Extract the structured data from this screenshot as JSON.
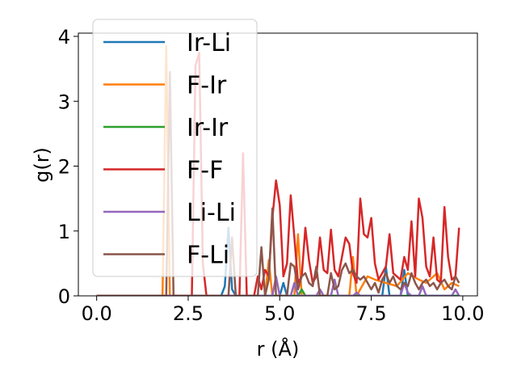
{
  "chart_data": {
    "type": "line",
    "xlabel": "r (Å)",
    "ylabel": "g(r)",
    "xlim": [
      -0.5,
      10.4
    ],
    "ylim": [
      0,
      4.05
    ],
    "xticks": [
      0.0,
      2.5,
      5.0,
      7.5,
      10.0
    ],
    "xtick_labels": [
      "0.0",
      "2.5",
      "5.0",
      "7.5",
      "10.0"
    ],
    "yticks": [
      0,
      1,
      2,
      3,
      4
    ],
    "ytick_labels": [
      "0",
      "1",
      "2",
      "3",
      "4"
    ],
    "grid": false,
    "legend_position": "upper-left",
    "series": [
      {
        "name": "Ir-Li",
        "color": "#1f77b4",
        "points": [
          [
            0,
            0
          ],
          [
            3.4,
            0
          ],
          [
            3.5,
            0.15
          ],
          [
            3.6,
            1.05
          ],
          [
            3.7,
            0.1
          ],
          [
            3.8,
            0
          ],
          [
            5.0,
            0
          ],
          [
            5.1,
            0.2
          ],
          [
            5.2,
            0
          ],
          [
            7.8,
            0
          ],
          [
            7.9,
            0.45
          ],
          [
            8.0,
            0
          ],
          [
            8.3,
            0
          ],
          [
            8.4,
            0.4
          ],
          [
            8.5,
            0
          ],
          [
            9.9,
            0
          ]
        ]
      },
      {
        "name": "F-Ir",
        "color": "#ff7f0e",
        "points": [
          [
            0,
            0
          ],
          [
            1.8,
            0
          ],
          [
            1.9,
            3.85
          ],
          [
            2.0,
            0
          ],
          [
            4.6,
            0
          ],
          [
            4.7,
            0.55
          ],
          [
            4.8,
            0
          ],
          [
            5.4,
            0
          ],
          [
            5.5,
            0.95
          ],
          [
            5.6,
            0
          ],
          [
            6.9,
            0
          ],
          [
            7.0,
            0.6
          ],
          [
            7.1,
            0
          ],
          [
            7.4,
            0.3
          ],
          [
            7.6,
            0.25
          ],
          [
            7.9,
            0.2
          ],
          [
            8.2,
            0.15
          ],
          [
            8.5,
            0.35
          ],
          [
            8.8,
            0.25
          ],
          [
            9.0,
            0.2
          ],
          [
            9.3,
            0.35
          ],
          [
            9.5,
            0.1
          ],
          [
            9.7,
            0.2
          ],
          [
            9.9,
            0.15
          ]
        ]
      },
      {
        "name": "Ir-Ir",
        "color": "#2ca02c",
        "points": [
          [
            0,
            0
          ],
          [
            5.5,
            0
          ],
          [
            5.6,
            0.1
          ],
          [
            5.7,
            0
          ],
          [
            9.9,
            0
          ]
        ]
      },
      {
        "name": "F-F",
        "color": "#d62728",
        "points": [
          [
            0,
            0
          ],
          [
            2.6,
            0
          ],
          [
            2.7,
            3.55
          ],
          [
            2.8,
            3.75
          ],
          [
            2.9,
            0.5
          ],
          [
            3.0,
            0
          ],
          [
            3.9,
            0
          ],
          [
            4.0,
            2.2
          ],
          [
            4.1,
            0
          ],
          [
            4.3,
            0
          ],
          [
            4.4,
            0.3
          ],
          [
            4.5,
            0.1
          ],
          [
            4.6,
            0.4
          ],
          [
            4.7,
            0.3
          ],
          [
            4.8,
            1.2
          ],
          [
            4.9,
            1.78
          ],
          [
            5.0,
            1.4
          ],
          [
            5.1,
            0.3
          ],
          [
            5.2,
            0.5
          ],
          [
            5.3,
            1.55
          ],
          [
            5.4,
            0.9
          ],
          [
            5.5,
            0.2
          ],
          [
            5.6,
            0.3
          ],
          [
            5.7,
            1.05
          ],
          [
            5.8,
            0.55
          ],
          [
            5.9,
            0.2
          ],
          [
            6.0,
            0.3
          ],
          [
            6.1,
            0.9
          ],
          [
            6.2,
            0.4
          ],
          [
            6.3,
            0.35
          ],
          [
            6.4,
            1.02
          ],
          [
            6.5,
            0.4
          ],
          [
            6.6,
            0.3
          ],
          [
            6.7,
            0.6
          ],
          [
            6.8,
            0.9
          ],
          [
            6.9,
            0.8
          ],
          [
            7.0,
            0.35
          ],
          [
            7.1,
            0.2
          ],
          [
            7.2,
            1.5
          ],
          [
            7.3,
            0.95
          ],
          [
            7.4,
            0.9
          ],
          [
            7.5,
            1.2
          ],
          [
            7.6,
            0.5
          ],
          [
            7.7,
            0.25
          ],
          [
            7.8,
            0.35
          ],
          [
            7.9,
            0.45
          ],
          [
            8.0,
            0.95
          ],
          [
            8.1,
            0.35
          ],
          [
            8.2,
            0.3
          ],
          [
            8.3,
            0.25
          ],
          [
            8.4,
            0.6
          ],
          [
            8.5,
            0.4
          ],
          [
            8.6,
            1.15
          ],
          [
            8.7,
            0.3
          ],
          [
            8.8,
            1.5
          ],
          [
            8.9,
            1.2
          ],
          [
            9.0,
            0.45
          ],
          [
            9.1,
            0.3
          ],
          [
            9.2,
            0.9
          ],
          [
            9.3,
            0.25
          ],
          [
            9.4,
            0.2
          ],
          [
            9.5,
            1.37
          ],
          [
            9.6,
            0.6
          ],
          [
            9.7,
            0.25
          ],
          [
            9.8,
            0.3
          ],
          [
            9.9,
            1.05
          ]
        ]
      },
      {
        "name": "Li-Li",
        "color": "#9467bd",
        "points": [
          [
            0,
            0
          ],
          [
            4.8,
            0
          ],
          [
            4.9,
            0.3
          ],
          [
            5.0,
            0
          ],
          [
            5.3,
            0
          ],
          [
            5.4,
            0.2
          ],
          [
            5.5,
            0
          ],
          [
            6.0,
            0
          ],
          [
            6.1,
            0.1
          ],
          [
            6.2,
            0
          ],
          [
            6.4,
            0
          ],
          [
            6.5,
            0.25
          ],
          [
            6.6,
            0
          ],
          [
            7.0,
            0
          ],
          [
            7.1,
            0.05
          ],
          [
            7.2,
            0
          ],
          [
            8.3,
            0
          ],
          [
            8.4,
            0.2
          ],
          [
            8.5,
            0.05
          ],
          [
            8.6,
            0
          ],
          [
            8.8,
            0
          ],
          [
            8.9,
            0.15
          ],
          [
            9.0,
            0
          ],
          [
            9.7,
            0
          ],
          [
            9.8,
            0.1
          ],
          [
            9.9,
            0
          ]
        ]
      },
      {
        "name": "F-Li",
        "color": "#8c564b",
        "points": [
          [
            0,
            0
          ],
          [
            1.9,
            0
          ],
          [
            2.0,
            3.45
          ],
          [
            2.1,
            0
          ],
          [
            3.6,
            0
          ],
          [
            3.7,
            0.9
          ],
          [
            3.8,
            0
          ],
          [
            4.4,
            0
          ],
          [
            4.5,
            0.75
          ],
          [
            4.6,
            0
          ],
          [
            4.7,
            0.25
          ],
          [
            4.8,
            1.35
          ],
          [
            4.9,
            0
          ],
          [
            5.2,
            0
          ],
          [
            5.3,
            0.5
          ],
          [
            5.4,
            0.45
          ],
          [
            5.5,
            0.1
          ],
          [
            5.6,
            0.3
          ],
          [
            5.7,
            0.35
          ],
          [
            5.8,
            0.2
          ],
          [
            5.9,
            0.15
          ],
          [
            6.0,
            0.45
          ],
          [
            6.1,
            0
          ],
          [
            6.3,
            0
          ],
          [
            6.4,
            0.35
          ],
          [
            6.5,
            0.1
          ],
          [
            6.6,
            0.15
          ],
          [
            6.7,
            0.4
          ],
          [
            6.8,
            0.5
          ],
          [
            6.9,
            0.35
          ],
          [
            7.0,
            0.4
          ],
          [
            7.1,
            0.3
          ],
          [
            7.2,
            0.25
          ],
          [
            7.3,
            0.3
          ],
          [
            7.5,
            0.1
          ],
          [
            7.6,
            0.2
          ],
          [
            7.7,
            0.05
          ],
          [
            7.8,
            0.25
          ],
          [
            7.9,
            0.35
          ],
          [
            8.0,
            0.2
          ],
          [
            8.1,
            0.3
          ],
          [
            8.2,
            0.15
          ],
          [
            8.3,
            0.1
          ],
          [
            8.4,
            0.2
          ],
          [
            8.5,
            0.15
          ],
          [
            8.6,
            0.35
          ],
          [
            8.7,
            0.2
          ],
          [
            8.8,
            0.1
          ],
          [
            8.9,
            0.2
          ],
          [
            9.0,
            0.25
          ],
          [
            9.1,
            0.15
          ],
          [
            9.2,
            0.2
          ],
          [
            9.3,
            0.1
          ],
          [
            9.4,
            0.2
          ],
          [
            9.5,
            0.25
          ],
          [
            9.6,
            0.15
          ],
          [
            9.7,
            0.1
          ],
          [
            9.8,
            0.3
          ],
          [
            9.9,
            0.2
          ]
        ]
      }
    ]
  }
}
